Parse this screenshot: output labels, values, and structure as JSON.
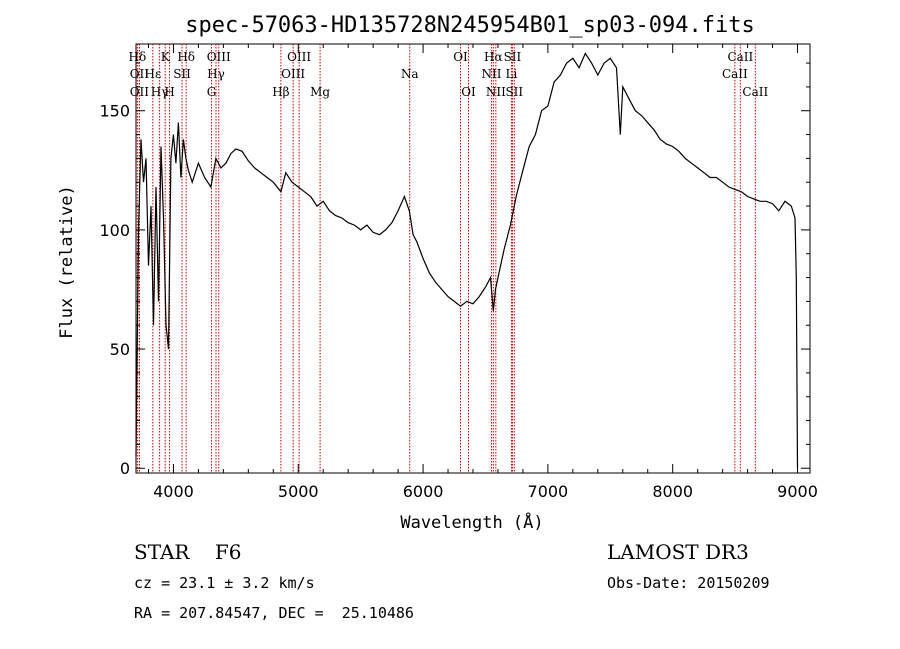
{
  "chart_data": {
    "type": "line",
    "title": "spec-57063-HD135728N245954B01_sp03-094.fits",
    "xlabel": "Wavelength (Å)",
    "ylabel": "Flux (relative)",
    "xlim": [
      3700,
      9100
    ],
    "ylim": [
      -2,
      178
    ],
    "xticks": [
      4000,
      5000,
      6000,
      7000,
      8000,
      9000
    ],
    "yticks": [
      0,
      50,
      100,
      150
    ],
    "grid": false,
    "series": [
      {
        "x": [
          3700,
          3720,
          3740,
          3760,
          3780,
          3800,
          3820,
          3840,
          3860,
          3880,
          3900,
          3920,
          3940,
          3960,
          3980,
          4000,
          4020,
          4040,
          4060,
          4080,
          4100,
          4120,
          4150,
          4200,
          4250,
          4300,
          4340,
          4380,
          4420,
          4460,
          4500,
          4550,
          4600,
          4650,
          4700,
          4750,
          4800,
          4861,
          4900,
          4950,
          5000,
          5050,
          5100,
          5150,
          5200,
          5250,
          5300,
          5350,
          5400,
          5450,
          5500,
          5550,
          5600,
          5650,
          5700,
          5750,
          5800,
          5850,
          5890,
          5920,
          5950,
          6000,
          6050,
          6100,
          6150,
          6200,
          6250,
          6300,
          6350,
          6400,
          6450,
          6500,
          6540,
          6563,
          6580,
          6600,
          6650,
          6700,
          6750,
          6800,
          6850,
          6900,
          6950,
          7000,
          7050,
          7100,
          7150,
          7200,
          7250,
          7300,
          7350,
          7400,
          7450,
          7500,
          7550,
          7580,
          7600,
          7650,
          7700,
          7750,
          7800,
          7850,
          7900,
          7950,
          8000,
          8050,
          8100,
          8150,
          8200,
          8250,
          8300,
          8350,
          8400,
          8450,
          8500,
          8550,
          8600,
          8650,
          8700,
          8750,
          8800,
          8850,
          8900,
          8950,
          8980,
          8990,
          9000
        ],
        "values": [
          5,
          100,
          138,
          120,
          130,
          85,
          110,
          60,
          118,
          70,
          135,
          105,
          60,
          50,
          130,
          140,
          128,
          145,
          122,
          138,
          130,
          125,
          120,
          128,
          122,
          118,
          130,
          126,
          128,
          132,
          134,
          133,
          129,
          126,
          124,
          122,
          120,
          116,
          124,
          120,
          118,
          116,
          114,
          110,
          112,
          108,
          106,
          105,
          103,
          102,
          100,
          102,
          99,
          98,
          100,
          103,
          108,
          114,
          108,
          98,
          95,
          88,
          82,
          78,
          75,
          72,
          70,
          68,
          70,
          69,
          72,
          76,
          80,
          66,
          75,
          80,
          92,
          102,
          115,
          125,
          135,
          140,
          150,
          152,
          162,
          165,
          170,
          172,
          168,
          174,
          170,
          165,
          170,
          172,
          168,
          140,
          160,
          155,
          150,
          148,
          145,
          142,
          138,
          136,
          135,
          133,
          130,
          128,
          126,
          124,
          122,
          122,
          120,
          118,
          117,
          116,
          114,
          113,
          112,
          112,
          111,
          108,
          112,
          110,
          105,
          80,
          0
        ]
      }
    ],
    "line_markers": [
      {
        "label": "Hδ",
        "x": 3711,
        "row": 1
      },
      {
        "label": "OII",
        "x": 3727,
        "row": 2
      },
      {
        "label": "OII",
        "x": 3727,
        "row": 3
      },
      {
        "label": "Hε",
        "x": 3835,
        "row": 2
      },
      {
        "label": "Hγ",
        "x": 3889,
        "row": 3
      },
      {
        "label": "K",
        "x": 3934,
        "row": 1
      },
      {
        "label": "H",
        "x": 3969,
        "row": 3
      },
      {
        "label": "SII",
        "x": 4069,
        "row": 2
      },
      {
        "label": "Hδ",
        "x": 4102,
        "row": 1
      },
      {
        "label": "G",
        "x": 4305,
        "row": 3
      },
      {
        "label": "Hγ",
        "x": 4341,
        "row": 2
      },
      {
        "label": "OIII",
        "x": 4363,
        "row": 1
      },
      {
        "label": "Hβ",
        "x": 4861,
        "row": 3
      },
      {
        "label": "OIII",
        "x": 4959,
        "row": 2
      },
      {
        "label": "OIII",
        "x": 5007,
        "row": 1
      },
      {
        "label": "Mg",
        "x": 5175,
        "row": 3
      },
      {
        "label": "Na",
        "x": 5893,
        "row": 2
      },
      {
        "label": "OI",
        "x": 6300,
        "row": 1
      },
      {
        "label": "OI",
        "x": 6364,
        "row": 3
      },
      {
        "label": "NII",
        "x": 6548,
        "row": 2
      },
      {
        "label": "Hα",
        "x": 6563,
        "row": 1
      },
      {
        "label": "NII",
        "x": 6583,
        "row": 3
      },
      {
        "label": "Li",
        "x": 6708,
        "row": 2
      },
      {
        "label": "SII",
        "x": 6716,
        "row": 1
      },
      {
        "label": "SII",
        "x": 6731,
        "row": 3
      },
      {
        "label": "CaII",
        "x": 8498,
        "row": 2
      },
      {
        "label": "CaII",
        "x": 8542,
        "row": 1
      },
      {
        "label": "CaII",
        "x": 8662,
        "row": 3
      }
    ],
    "colors": {
      "spectrum": "#000000",
      "markers": "#cc0000"
    }
  },
  "info": {
    "class_line": "STAR    F6",
    "survey": "LAMOST DR3",
    "redshift": "cz = 23.1 ± 3.2 km/s",
    "obs_date": "Obs-Date: 20150209",
    "coords": "RA = 207.84547, DEC =  25.10486"
  }
}
